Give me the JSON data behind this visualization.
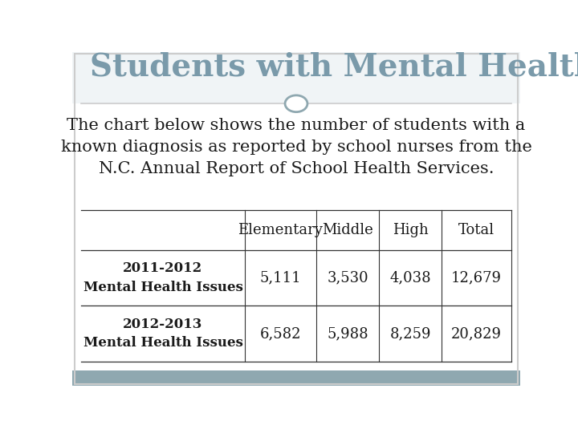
{
  "title": "Students with Mental Health Issues",
  "title_color": "#7a9aaa",
  "subtitle": "The chart below shows the number of students with a\nknown diagnosis as reported by school nurses from the\nN.C. Annual Report of School Health Services.",
  "bg_color": "#ffffff",
  "footer_bg": "#8fa8b0",
  "col_headers": [
    "Elementary",
    "Middle",
    "High",
    "Total"
  ],
  "row_labels": [
    "2011-2012\nMental Health Issues",
    "2012-2013\nMental Health Issues"
  ],
  "data": [
    [
      "5,111",
      "3,530",
      "4,038",
      "12,679"
    ],
    [
      "6,582",
      "5,988",
      "8,259",
      "20,829"
    ]
  ],
  "title_fontsize": 28,
  "subtitle_fontsize": 15,
  "table_header_fontsize": 13,
  "table_data_fontsize": 13,
  "row_label_fontsize": 12,
  "divider_color": "#cccccc",
  "table_line_color": "#333333",
  "circle_color": "#8fa8b0",
  "title_bar_color": "#f0f4f6"
}
